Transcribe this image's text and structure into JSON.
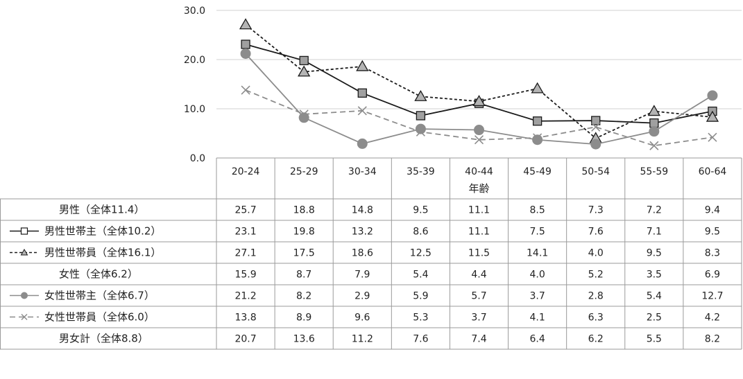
{
  "chart_data": {
    "type": "line",
    "xlabel": "年齢",
    "ylim": [
      0,
      30
    ],
    "yticks": [
      "0.0",
      "10.0",
      "20.0",
      "30.0"
    ],
    "categories": [
      "20-24",
      "25-29",
      "30-34",
      "35-39",
      "40-44",
      "45-49",
      "50-54",
      "55-59",
      "60-64"
    ],
    "grid": true,
    "rows": [
      {
        "name": "男性（全体11.4）",
        "values": [
          25.7,
          18.8,
          14.8,
          9.5,
          11.1,
          8.5,
          7.3,
          7.2,
          9.4
        ],
        "plotted": false,
        "marker": "none",
        "dash": "none",
        "color": "#000000"
      },
      {
        "name": "男性世帯主（全体10.2）",
        "values": [
          23.1,
          19.8,
          13.2,
          8.6,
          11.1,
          7.5,
          7.6,
          7.1,
          9.5
        ],
        "plotted": true,
        "marker": "square",
        "dash": "solid",
        "color": "#1a1a1a",
        "fill": "#a0a0a0"
      },
      {
        "name": "男性世帯員（全体16.1）",
        "values": [
          27.1,
          17.5,
          18.6,
          12.5,
          11.5,
          14.1,
          4.0,
          9.5,
          8.3
        ],
        "plotted": true,
        "marker": "triangle",
        "dash": "dotted",
        "color": "#1a1a1a",
        "fill": "#b4b4b4"
      },
      {
        "name": "女性（全体6.2）",
        "values": [
          15.9,
          8.7,
          7.9,
          5.4,
          4.4,
          4.0,
          5.2,
          3.5,
          6.9
        ],
        "plotted": false,
        "marker": "none",
        "dash": "none",
        "color": "#000000"
      },
      {
        "name": "女性世帯主（全体6.7）",
        "values": [
          21.2,
          8.2,
          2.9,
          5.9,
          5.7,
          3.7,
          2.8,
          5.4,
          12.7
        ],
        "plotted": true,
        "marker": "circle",
        "dash": "solid",
        "color": "#8c8c8c",
        "fill": "#8c8c8c"
      },
      {
        "name": "女性世帯員（全体6.0）",
        "values": [
          13.8,
          8.9,
          9.6,
          5.3,
          3.7,
          4.1,
          6.3,
          2.5,
          4.2
        ],
        "plotted": true,
        "marker": "x",
        "dash": "dashed",
        "color": "#8c8c8c",
        "fill": "none"
      },
      {
        "name": "男女計（全体8.8）",
        "values": [
          20.7,
          13.6,
          11.2,
          7.6,
          7.4,
          6.4,
          6.2,
          5.5,
          8.2
        ],
        "plotted": false,
        "marker": "none",
        "dash": "none",
        "color": "#000000"
      }
    ]
  }
}
